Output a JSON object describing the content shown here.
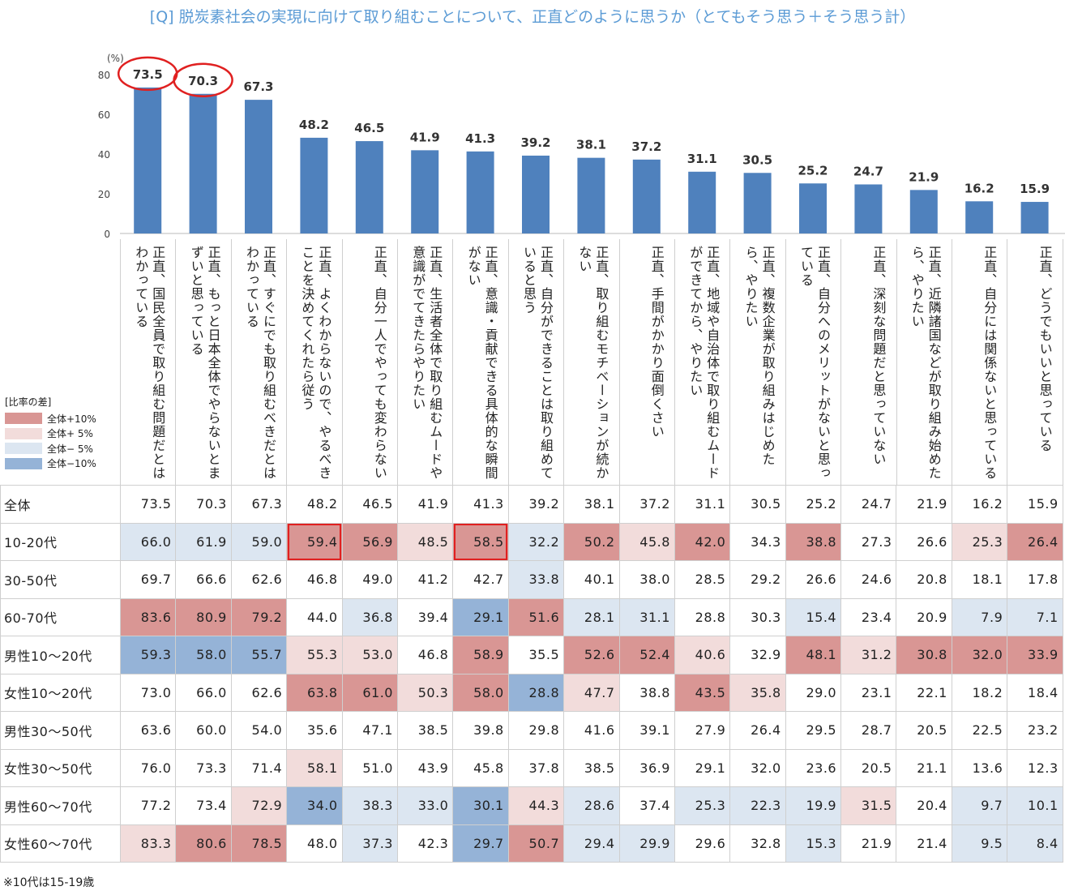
{
  "title": "[Q] 脱炭素社会の実現に向けて取り組むことについて、正直どのように思うか（とてもそう思う＋そう思う計）",
  "chart_data": {
    "type": "bar",
    "unit": "(%)",
    "ylim": [
      0,
      80
    ],
    "yticks": [
      0,
      20,
      40,
      60,
      80
    ],
    "bar_color": "#4f81bd",
    "categories": [
      "正直、国民全員で取り組む問題だとはわかっている",
      "正直、もっと日本全体でやらないとまずいと思っている",
      "正直、すぐにでも取り組むべきだとはわかっている",
      "正直、よくわからないので、やるべきことを決めてくれたら従う",
      "正直、自分一人でやっても変わらない",
      "正直、生活者全体で取り組むムードや意識がでてきたらやりたい",
      "正直、意識・貢献できる具体的な瞬間がない",
      "正直、自分ができることは取り組めていると思う",
      "正直、取り組むモチベーションが続かない",
      "正直、手間がかかり面倒くさい",
      "正直、地域や自治体で取り組むムードができてから、やりたい",
      "正直、複数企業が取り組みはじめたら、やりたい",
      "正直、自分へのメリットがないと思っている",
      "正直、深刻な問題だと思っていない",
      "正直、近隣諸国などが取り組み始めたら、やりたい",
      "正直、自分には関係ないと思っている",
      "正直、どうでもいいと思っている"
    ],
    "values": [
      73.5,
      70.3,
      67.3,
      48.2,
      46.5,
      41.9,
      41.3,
      39.2,
      38.1,
      37.2,
      31.1,
      30.5,
      25.2,
      24.7,
      21.9,
      16.2,
      15.9
    ],
    "circled_indices": [
      0,
      1
    ]
  },
  "legend": {
    "title": "[比率の差]",
    "items": [
      {
        "label": "全体+10%",
        "color": "#d99694"
      },
      {
        "label": "全体+ 5%",
        "color": "#f2dcdb"
      },
      {
        "label": "全体− 5%",
        "color": "#dce6f1"
      },
      {
        "label": "全体−10%",
        "color": "#95b3d7"
      }
    ]
  },
  "table": {
    "rows": [
      {
        "label": "全体",
        "values": [
          "73.5",
          "70.3",
          "67.3",
          "48.2",
          "46.5",
          "41.9",
          "41.3",
          "39.2",
          "38.1",
          "37.2",
          "31.1",
          "30.5",
          "25.2",
          "24.7",
          "21.9",
          "16.2",
          "15.9"
        ],
        "shade": [
          0,
          0,
          0,
          0,
          0,
          0,
          0,
          0,
          0,
          0,
          0,
          0,
          0,
          0,
          0,
          0,
          0
        ]
      },
      {
        "label": "10-20代",
        "values": [
          "66.0",
          "61.9",
          "59.0",
          "59.4",
          "56.9",
          "48.5",
          "58.5",
          "32.2",
          "50.2",
          "45.8",
          "42.0",
          "34.3",
          "38.8",
          "27.3",
          "26.6",
          "25.3",
          "26.4"
        ],
        "shade": [
          -1,
          -1,
          -1,
          2,
          2,
          1,
          2,
          -1,
          2,
          1,
          2,
          0,
          2,
          0,
          0,
          1,
          2
        ],
        "highlight": [
          3,
          6
        ]
      },
      {
        "label": "30-50代",
        "values": [
          "69.7",
          "66.6",
          "62.6",
          "46.8",
          "49.0",
          "41.2",
          "42.7",
          "33.8",
          "40.1",
          "38.0",
          "28.5",
          "29.2",
          "26.6",
          "24.6",
          "20.8",
          "18.1",
          "17.8"
        ],
        "shade": [
          0,
          0,
          0,
          0,
          0,
          0,
          0,
          -1,
          0,
          0,
          0,
          0,
          0,
          0,
          0,
          0,
          0
        ]
      },
      {
        "label": "60-70代",
        "values": [
          "83.6",
          "80.9",
          "79.2",
          "44.0",
          "36.8",
          "39.4",
          "29.1",
          "51.6",
          "28.1",
          "31.1",
          "28.8",
          "30.3",
          "15.4",
          "23.4",
          "20.9",
          "7.9",
          "7.1"
        ],
        "shade": [
          2,
          2,
          2,
          0,
          -1,
          0,
          -2,
          2,
          -1,
          -1,
          0,
          0,
          -1,
          0,
          0,
          -1,
          -1
        ]
      },
      {
        "label": "男性10～20代",
        "values": [
          "59.3",
          "58.0",
          "55.7",
          "55.3",
          "53.0",
          "46.8",
          "58.9",
          "35.5",
          "52.6",
          "52.4",
          "40.6",
          "32.9",
          "48.1",
          "31.2",
          "30.8",
          "32.0",
          "33.9"
        ],
        "shade": [
          -2,
          -2,
          -2,
          1,
          1,
          0,
          2,
          0,
          2,
          2,
          1,
          0,
          2,
          1,
          2,
          2,
          2
        ]
      },
      {
        "label": "女性10～20代",
        "values": [
          "73.0",
          "66.0",
          "62.6",
          "63.8",
          "61.0",
          "50.3",
          "58.0",
          "28.8",
          "47.7",
          "38.8",
          "43.5",
          "35.8",
          "29.0",
          "23.1",
          "22.1",
          "18.2",
          "18.4"
        ],
        "shade": [
          0,
          0,
          0,
          2,
          2,
          1,
          2,
          -2,
          1,
          0,
          2,
          1,
          0,
          0,
          0,
          0,
          0
        ]
      },
      {
        "label": "男性30～50代",
        "values": [
          "63.6",
          "60.0",
          "54.0",
          "35.6",
          "47.1",
          "38.5",
          "39.8",
          "29.8",
          "41.6",
          "39.1",
          "27.9",
          "26.4",
          "29.5",
          "28.7",
          "20.5",
          "22.5",
          "23.2"
        ],
        "shade": [
          0,
          0,
          0,
          0,
          0,
          0,
          0,
          0,
          0,
          0,
          0,
          0,
          0,
          0,
          0,
          0,
          0
        ]
      },
      {
        "label": "女性30～50代",
        "values": [
          "76.0",
          "73.3",
          "71.4",
          "58.1",
          "51.0",
          "43.9",
          "45.8",
          "37.8",
          "38.5",
          "36.9",
          "29.1",
          "32.0",
          "23.6",
          "20.5",
          "21.1",
          "13.6",
          "12.3"
        ],
        "shade": [
          0,
          0,
          0,
          1,
          0,
          0,
          0,
          0,
          0,
          0,
          0,
          0,
          0,
          0,
          0,
          0,
          0
        ]
      },
      {
        "label": "男性60～70代",
        "values": [
          "77.2",
          "73.4",
          "72.9",
          "34.0",
          "38.3",
          "33.0",
          "30.1",
          "44.3",
          "28.6",
          "37.4",
          "25.3",
          "22.3",
          "19.9",
          "31.5",
          "20.4",
          "9.7",
          "10.1"
        ],
        "shade": [
          0,
          0,
          1,
          -2,
          -1,
          -1,
          -2,
          1,
          -1,
          0,
          -1,
          -1,
          -1,
          1,
          0,
          -1,
          -1
        ]
      },
      {
        "label": "女性60～70代",
        "values": [
          "83.3",
          "80.6",
          "78.5",
          "48.0",
          "37.3",
          "42.3",
          "29.7",
          "50.7",
          "29.4",
          "29.9",
          "29.6",
          "32.8",
          "15.3",
          "21.9",
          "21.4",
          "9.5",
          "8.4"
        ],
        "shade": [
          1,
          2,
          2,
          0,
          -1,
          0,
          -2,
          2,
          -1,
          -1,
          0,
          0,
          -1,
          0,
          0,
          -1,
          -1
        ]
      }
    ]
  },
  "note": "※10代は15-19歳"
}
